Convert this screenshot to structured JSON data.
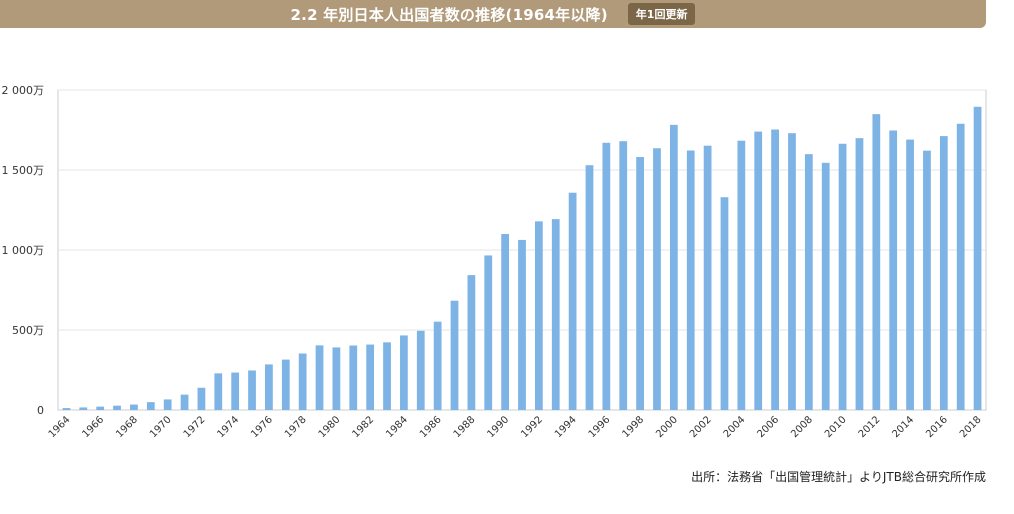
{
  "header": {
    "title": "2.2 年別日本人出国者数の推移(1964年以降)",
    "badge": "年1回更新"
  },
  "source": "出所：法務省「出国管理統計」よりJTB総合研究所作成",
  "colors": {
    "bar": "#7eb3e6",
    "grid": "#e6e6e6",
    "axis": "#cccccc",
    "title_bg": "#b09a79",
    "badge_bg": "#7b6648"
  },
  "chart_data": {
    "type": "bar",
    "title": "",
    "xlabel": "",
    "ylabel": "",
    "ylim": [
      0,
      2000
    ],
    "y_ticks": [
      0,
      500,
      1000,
      1500,
      2000
    ],
    "y_tick_labels": [
      "0",
      "500万",
      "1 000万",
      "1 500万",
      "2 000万"
    ],
    "grid": true,
    "categories": [
      "1964",
      "1965",
      "1966",
      "1967",
      "1968",
      "1969",
      "1970",
      "1971",
      "1972",
      "1973",
      "1974",
      "1975",
      "1976",
      "1977",
      "1978",
      "1979",
      "1980",
      "1981",
      "1982",
      "1983",
      "1984",
      "1985",
      "1986",
      "1987",
      "1988",
      "1989",
      "1990",
      "1991",
      "1992",
      "1993",
      "1994",
      "1995",
      "1996",
      "1997",
      "1998",
      "1999",
      "2000",
      "2001",
      "2002",
      "2003",
      "2004",
      "2005",
      "2006",
      "2007",
      "2008",
      "2009",
      "2010",
      "2011",
      "2012",
      "2013",
      "2014",
      "2015",
      "2016",
      "2017",
      "2018"
    ],
    "x_tick_labels": [
      "1964",
      "1966",
      "1968",
      "1970",
      "1972",
      "1974",
      "1976",
      "1978",
      "1980",
      "1982",
      "1984",
      "1986",
      "1988",
      "1990",
      "1992",
      "1994",
      "1996",
      "1998",
      "2000",
      "2002",
      "2004",
      "2006",
      "2008",
      "2010",
      "2012",
      "2014",
      "2016",
      "2018"
    ],
    "series": [
      {
        "values": [
          12,
          16,
          21,
          27,
          34,
          49,
          66,
          96,
          139,
          229,
          234,
          247,
          285,
          315,
          353,
          404,
          391,
          403,
          409,
          423,
          466,
          495,
          552,
          683,
          843,
          966,
          1100,
          1063,
          1179,
          1193,
          1358,
          1530,
          1670,
          1680,
          1581,
          1636,
          1782,
          1622,
          1652,
          1330,
          1683,
          1740,
          1753,
          1730,
          1599,
          1545,
          1664,
          1699,
          1849,
          1747,
          1690,
          1621,
          1712,
          1789,
          1895
        ]
      }
    ]
  }
}
